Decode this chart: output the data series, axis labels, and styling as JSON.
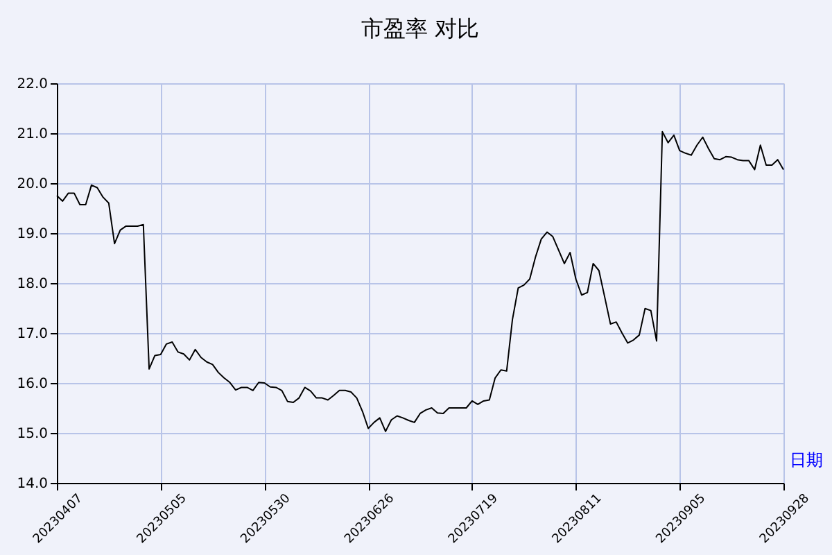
{
  "chart_data": {
    "type": "line",
    "title": "市盈率  对比",
    "xlabel": "日期",
    "categories": [
      "20230407",
      null,
      null,
      null,
      null,
      null,
      null,
      null,
      null,
      null,
      null,
      null,
      null,
      null,
      null,
      null,
      null,
      null,
      "20230505",
      null,
      null,
      null,
      null,
      null,
      null,
      null,
      null,
      null,
      null,
      null,
      null,
      null,
      null,
      null,
      null,
      null,
      "20230530",
      null,
      null,
      null,
      null,
      null,
      null,
      null,
      null,
      null,
      null,
      null,
      null,
      null,
      null,
      null,
      null,
      null,
      "20230626",
      null,
      null,
      null,
      null,
      null,
      null,
      null,
      null,
      null,
      null,
      null,
      null,
      null,
      null,
      null,
      null,
      null,
      "20230719",
      null,
      null,
      null,
      null,
      null,
      null,
      null,
      null,
      null,
      null,
      null,
      null,
      null,
      null,
      null,
      null,
      null,
      "20230811",
      null,
      null,
      null,
      null,
      null,
      null,
      null,
      null,
      null,
      null,
      null,
      null,
      null,
      null,
      null,
      null,
      null,
      "20230905",
      null,
      null,
      null,
      null,
      null,
      null,
      null,
      null,
      null,
      null,
      null,
      null,
      null,
      null,
      null,
      null,
      null,
      "20230928"
    ],
    "series": [
      {
        "color": "#000000",
        "values": [
          19.75,
          19.64,
          19.8,
          19.8,
          19.57,
          19.57,
          19.96,
          19.91,
          19.72,
          19.6,
          18.79,
          19.06,
          19.14,
          19.14,
          19.14,
          19.17,
          16.28,
          16.55,
          16.57,
          16.78,
          16.82,
          16.62,
          16.58,
          16.46,
          16.67,
          16.51,
          16.42,
          16.37,
          16.21,
          16.1,
          16.01,
          15.86,
          15.91,
          15.91,
          15.85,
          16.01,
          16.0,
          15.92,
          15.91,
          15.85,
          15.63,
          15.61,
          15.7,
          15.91,
          15.84,
          15.7,
          15.7,
          15.66,
          15.75,
          15.85,
          15.85,
          15.82,
          15.7,
          15.43,
          15.09,
          15.21,
          15.3,
          15.03,
          15.26,
          15.34,
          15.3,
          15.25,
          15.21,
          15.39,
          15.46,
          15.5,
          15.4,
          15.39,
          15.5,
          15.5,
          15.5,
          15.5,
          15.64,
          15.57,
          15.64,
          15.66,
          16.1,
          16.26,
          16.24,
          17.27,
          17.9,
          17.96,
          18.08,
          18.52,
          18.88,
          19.02,
          18.93,
          18.66,
          18.39,
          18.61,
          18.08,
          17.76,
          17.81,
          18.39,
          18.25,
          17.72,
          17.18,
          17.22,
          17.0,
          16.8,
          16.86,
          16.96,
          17.49,
          17.45,
          16.84,
          21.03,
          20.81,
          20.96,
          20.65,
          20.6,
          20.56,
          20.76,
          20.92,
          20.69,
          20.49,
          20.47,
          20.53,
          20.52,
          20.47,
          20.45,
          20.45,
          20.27,
          20.76,
          20.36,
          20.36,
          20.47,
          20.27
        ]
      }
    ],
    "ylim": [
      14,
      22
    ],
    "yticks": [
      {
        "value": 14,
        "label": "14.0"
      },
      {
        "value": 15,
        "label": "15.0"
      },
      {
        "value": 16,
        "label": "16.0"
      },
      {
        "value": 17,
        "label": "17.0"
      },
      {
        "value": 18,
        "label": "18.0"
      },
      {
        "value": 19,
        "label": "19.0"
      },
      {
        "value": 20,
        "label": "20.0"
      },
      {
        "value": 21,
        "label": "21.0"
      },
      {
        "value": 22,
        "label": "22.0"
      }
    ],
    "grid": true,
    "legend": false,
    "marker": "none",
    "line_style": "solid"
  }
}
